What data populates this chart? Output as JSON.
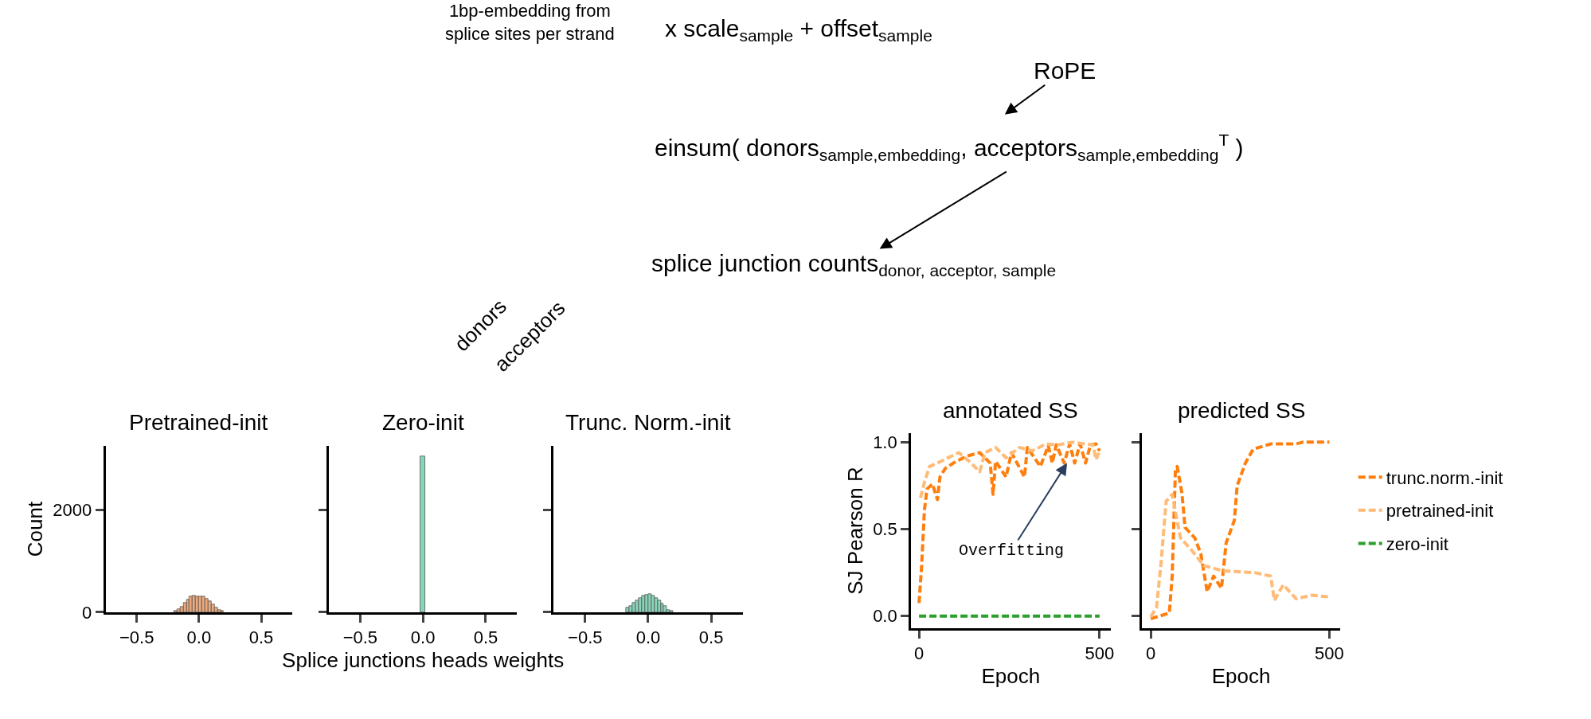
{
  "chart_data": [
    {
      "type": "other",
      "annotations": [
        "1bp-embedding from\nsplice sites per strand",
        "x scale$_{sample}$ + offset$_{sample}$",
        "RoPE",
        "einsum( donors$_{sample,embedding}$, acceptors$_{sample,embedding}$$^{T}$ )",
        "splice junction counts$_{donor, acceptor, sample}$",
        "donors",
        "acceptors"
      ]
    },
    {
      "type": "histogram",
      "title": "Pretrained-init",
      "ylabel": "Count",
      "color": "#eea97c",
      "bins": [
        -0.2,
        -0.175,
        -0.15,
        -0.125,
        -0.1,
        -0.075,
        -0.05,
        -0.025,
        0,
        0.025,
        0.05,
        0.075,
        0.1,
        0.125,
        0.15,
        0.175,
        0.2
      ],
      "values": [
        30,
        60,
        110,
        180,
        240,
        300,
        320,
        310,
        300,
        300,
        260,
        210,
        150,
        90,
        50,
        30
      ],
      "xlim": [
        -0.75,
        0.75
      ],
      "xticks": [
        {
          "value": -0.5,
          "label": "−0.5"
        },
        {
          "value": 0,
          "label": "0.0"
        },
        {
          "value": 0.5,
          "label": "0.5"
        }
      ],
      "ylim": [
        0,
        3250
      ],
      "yticks": [
        0,
        2000
      ]
    },
    {
      "type": "histogram",
      "title": "Zero-init",
      "xlabel": "Splice junctions heads weights",
      "color": "#88d5b8",
      "bins": [
        -0.018,
        0.018
      ],
      "values": [
        3050
      ],
      "xlim": [
        -0.75,
        0.75
      ],
      "xticks": [
        {
          "value": -0.5,
          "label": "−0.5"
        },
        {
          "value": 0,
          "label": "0.0"
        },
        {
          "value": 0.5,
          "label": "0.5"
        }
      ],
      "ylim": [
        0,
        3250
      ],
      "yticks": [
        0,
        2000
      ],
      "tick_labels": "x"
    },
    {
      "type": "histogram",
      "title": "Trunc. Norm.-init",
      "color": "#88d5b8",
      "bins": [
        -0.175,
        -0.15,
        -0.125,
        -0.1,
        -0.075,
        -0.05,
        -0.025,
        0,
        0.025,
        0.05,
        0.075,
        0.1,
        0.125,
        0.15,
        0.175,
        0.2
      ],
      "values": [
        90,
        120,
        190,
        230,
        280,
        330,
        340,
        350,
        330,
        280,
        230,
        160,
        120,
        50,
        20
      ],
      "xlim": [
        -0.75,
        0.75
      ],
      "xticks": [
        {
          "value": -0.5,
          "label": "−0.5"
        },
        {
          "value": 0,
          "label": "0.0"
        },
        {
          "value": 0.5,
          "label": "0.5"
        }
      ],
      "ylim": [
        0,
        3250
      ],
      "yticks": [
        0,
        2000
      ],
      "tick_labels": "x"
    },
    {
      "type": "line",
      "title": "annotated SS",
      "xlabel": "Epoch",
      "ylabel": "SJ Pearson R",
      "line_style": "dashed",
      "legend": "right",
      "series": [
        {
          "name": "trunc.norm.-init",
          "color": "#ff7f0e",
          "x": [
            0,
            7,
            15,
            22,
            37,
            51,
            58,
            73,
            95,
            132,
            168,
            197,
            205,
            212,
            241,
            256,
            292,
            300,
            336,
            358,
            369,
            380,
            402,
            417,
            431,
            446,
            461,
            475,
            490,
            500
          ],
          "values": [
            0.075,
            0.28,
            0.61,
            0.73,
            0.76,
            0.67,
            0.8,
            0.85,
            0.88,
            0.92,
            0.94,
            0.88,
            0.7,
            0.89,
            0.8,
            0.94,
            0.8,
            0.97,
            0.86,
            0.98,
            0.88,
            0.985,
            0.88,
            0.99,
            0.88,
            0.99,
            0.88,
            0.985,
            0.99,
            0.95
          ]
        },
        {
          "name": "pretrained-init",
          "color": "#ffbb78",
          "x": [
            4,
            15,
            29,
            51,
            80,
            110,
            139,
            168,
            183,
            212,
            241,
            278,
            314,
            351,
            387,
            424,
            461,
            482,
            490,
            500
          ],
          "values": [
            0.68,
            0.77,
            0.86,
            0.88,
            0.91,
            0.94,
            0.89,
            0.83,
            0.94,
            0.97,
            0.91,
            0.97,
            0.95,
            0.99,
            0.985,
            1.0,
            0.99,
            0.985,
            0.9,
            0.95
          ]
        },
        {
          "name": "zero-init",
          "color": "#2ca02c",
          "x": [
            0,
            500
          ],
          "values": [
            0,
            0
          ]
        }
      ],
      "xlim": [
        -22,
        530
      ],
      "xticks": [
        0,
        500
      ],
      "ylim": [
        -0.068,
        1.05
      ],
      "yticks": [
        {
          "value": 0,
          "label": "0.0"
        },
        {
          "value": 0.5,
          "label": "0.5"
        },
        {
          "value": 1,
          "label": "1.0"
        }
      ],
      "annotations": [
        {
          "text": "Overfitting",
          "x": 410,
          "y": 0.88
        }
      ]
    },
    {
      "type": "line",
      "title": "predicted SS",
      "xlabel": "Epoch",
      "line_style": "dashed",
      "legend": "right",
      "tick_labels": "x",
      "series": [
        {
          "name": "trunc.norm.-init",
          "color": "#ff7f0e",
          "x": [
            0,
            52,
            60,
            69,
            74,
            87,
            96,
            123,
            140,
            158,
            176,
            198,
            211,
            234,
            242,
            265,
            287,
            336,
            407,
            426,
            500
          ],
          "values": [
            -0.015,
            0.017,
            0.23,
            0.84,
            0.86,
            0.71,
            0.51,
            0.45,
            0.36,
            0.14,
            0.23,
            0.16,
            0.42,
            0.55,
            0.75,
            0.88,
            0.96,
            0.99,
            0.99,
            1.0,
            1.0
          ]
        },
        {
          "name": "pretrained-init",
          "color": "#ffbb78",
          "x": [
            0,
            16,
            29,
            43,
            60,
            83,
            114,
            149,
            202,
            291,
            336,
            346,
            371,
            407,
            451,
            500
          ],
          "values": [
            -0.005,
            0.05,
            0.31,
            0.66,
            0.7,
            0.45,
            0.38,
            0.29,
            0.26,
            0.25,
            0.23,
            0.09,
            0.18,
            0.1,
            0.12,
            0.11
          ]
        }
      ],
      "xlim": [
        -24,
        530
      ],
      "xticks": [
        0,
        500
      ],
      "ylim": [
        -0.068,
        1.05
      ],
      "yticks": [
        {
          "value": 0,
          "label": "0.0"
        },
        {
          "value": 0.5,
          "label": "0.5"
        },
        {
          "value": 1,
          "label": "1.0"
        }
      ]
    }
  ]
}
